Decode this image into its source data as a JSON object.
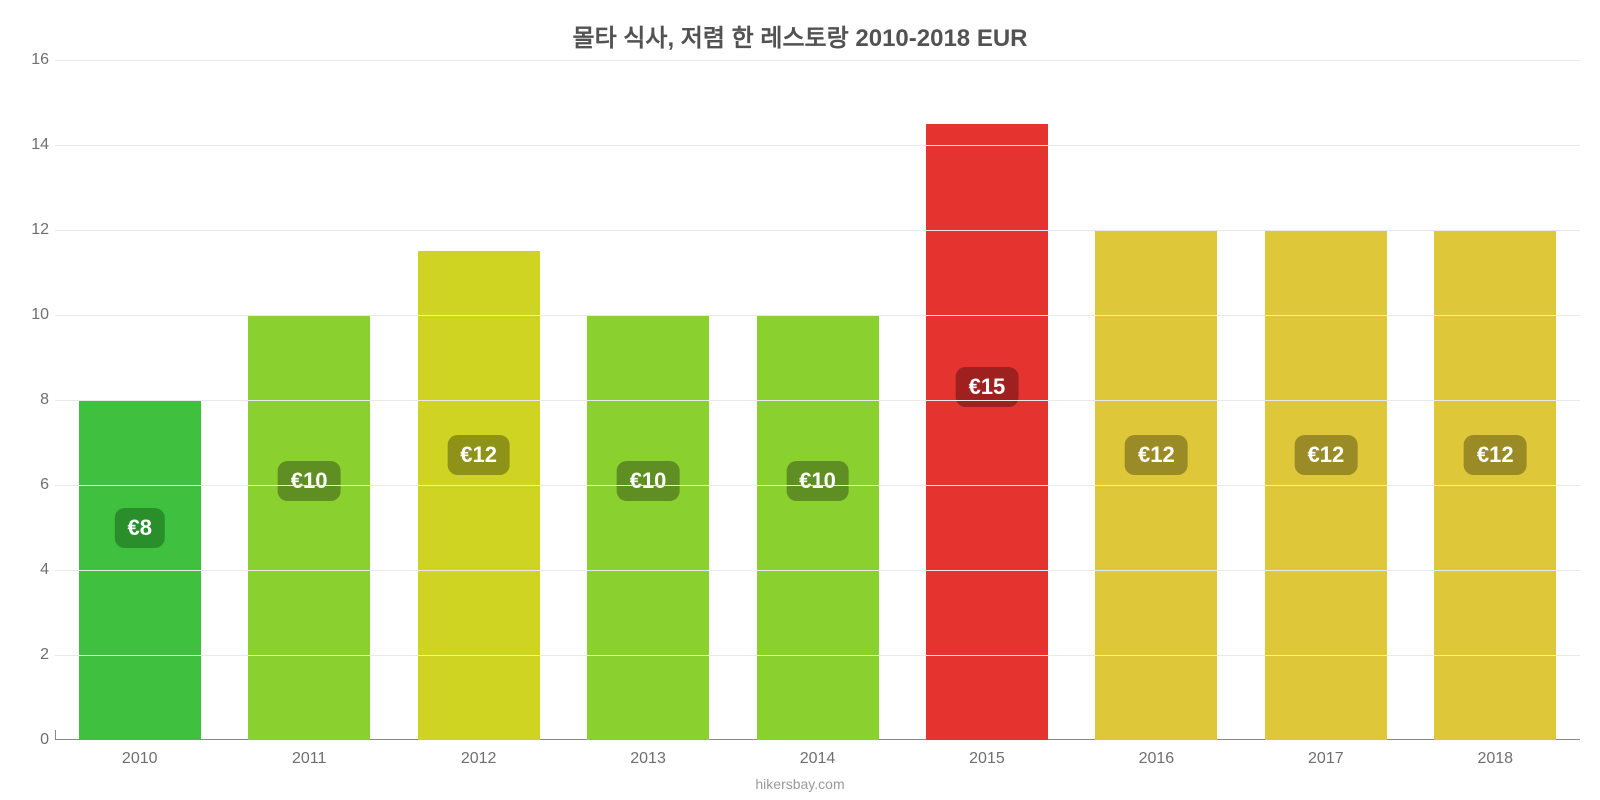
{
  "chart": {
    "type": "bar",
    "title": "몰타 식사, 저렴 한 레스토랑 2010-2018 EUR",
    "title_fontsize": 24,
    "title_color": "#525252",
    "background_color": "#ffffff",
    "grid_color": "#e9e9e9",
    "axis_line_color": "#888888",
    "tick_font_color": "#6f6f6f",
    "tick_fontsize": 16,
    "y": {
      "min": 0,
      "max": 16,
      "ticks": [
        0,
        2,
        4,
        6,
        8,
        10,
        12,
        14,
        16
      ]
    },
    "bar_width_ratio": 0.72,
    "bar_label_fontsize": 22,
    "bar_label_text_color": "#ffffff",
    "bar_label_radius": 10,
    "bars": [
      {
        "category": "2010",
        "value": 8.0,
        "display": "€8",
        "fill": "#3fc13f",
        "label_bg": "#2a8f2a",
        "label_y": 5.0
      },
      {
        "category": "2011",
        "value": 10.0,
        "display": "€10",
        "fill": "#8ad12f",
        "label_bg": "#5f8f22",
        "label_y": 6.1
      },
      {
        "category": "2012",
        "value": 11.5,
        "display": "€12",
        "fill": "#cfd423",
        "label_bg": "#8f9218",
        "label_y": 6.7
      },
      {
        "category": "2013",
        "value": 10.0,
        "display": "€10",
        "fill": "#8ad12f",
        "label_bg": "#5f8f22",
        "label_y": 6.1
      },
      {
        "category": "2014",
        "value": 10.0,
        "display": "€10",
        "fill": "#8ad12f",
        "label_bg": "#5f8f22",
        "label_y": 6.1
      },
      {
        "category": "2015",
        "value": 14.5,
        "display": "€15",
        "fill": "#e53430",
        "label_bg": "#9e201f",
        "label_y": 8.3
      },
      {
        "category": "2016",
        "value": 12.0,
        "display": "€12",
        "fill": "#dec83a",
        "label_bg": "#9a8b27",
        "label_y": 6.7
      },
      {
        "category": "2017",
        "value": 12.0,
        "display": "€12",
        "fill": "#dec83a",
        "label_bg": "#9a8b27",
        "label_y": 6.7
      },
      {
        "category": "2018",
        "value": 12.0,
        "display": "€12",
        "fill": "#dec83a",
        "label_bg": "#9a8b27",
        "label_y": 6.7
      }
    ],
    "source_text": "hikersbay.com",
    "source_fontsize": 14,
    "source_color": "#9a9a9a"
  }
}
